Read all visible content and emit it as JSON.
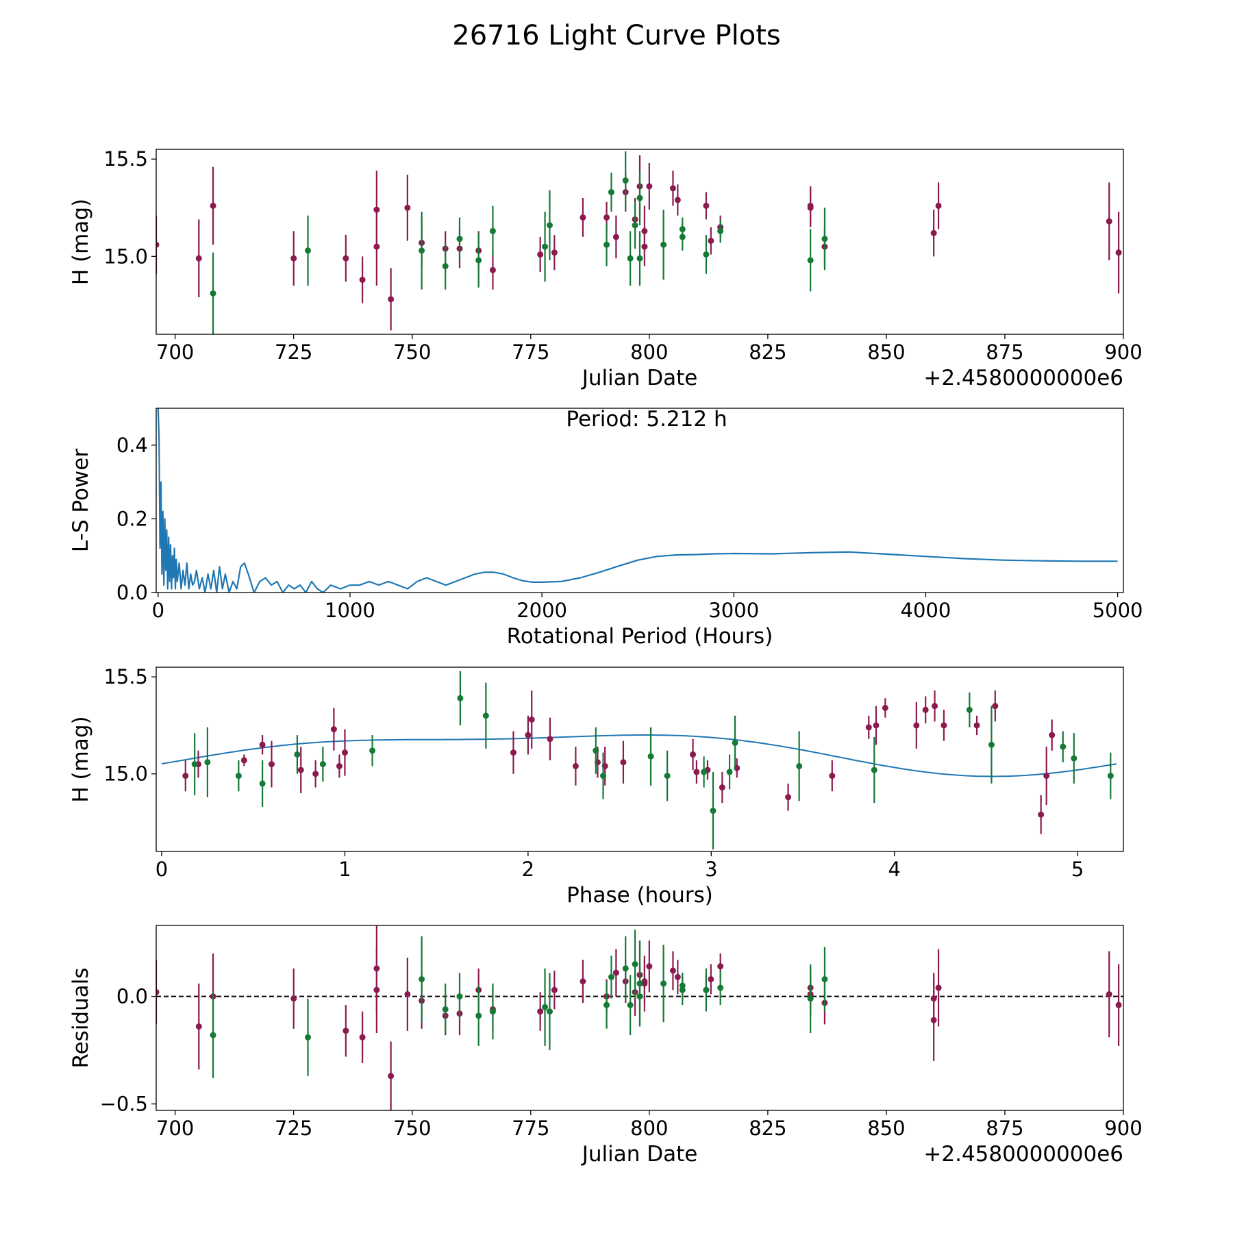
{
  "figure_title": "26716 Light Curve Plots",
  "colors": {
    "maroon": "#8b1a4f",
    "green": "#147a35",
    "fit": "#1f77b4",
    "axis": "#000000"
  },
  "chart_data": [
    {
      "type": "scatter",
      "id": "lightcurve",
      "xlabel": "Julian Date",
      "ylabel": "H (mag)",
      "offset_label": "+2.4580000000e6",
      "xlim": [
        696,
        900
      ],
      "ylim": [
        14.6,
        15.55
      ],
      "xticks": [
        700,
        725,
        750,
        775,
        800,
        825,
        850,
        875,
        900
      ],
      "xtick_labels": [
        "700",
        "725",
        "750",
        "775",
        "800",
        "825",
        "850",
        "875",
        "900"
      ],
      "yticks": [
        15.0,
        15.5
      ],
      "ytick_labels": [
        "15.0",
        "15.5"
      ],
      "errorbars": true,
      "series": [
        {
          "name": "maroon",
          "color": "#8b1a4f",
          "x": [
            696,
            705,
            708,
            725,
            736,
            739.5,
            742.5,
            742.5,
            745.5,
            749,
            752,
            757,
            760,
            764,
            767,
            777,
            780,
            786,
            791,
            793,
            795,
            797,
            798,
            799,
            799,
            800,
            805,
            806,
            812,
            813,
            815,
            834,
            834,
            837,
            860,
            861,
            897,
            899
          ],
          "y": [
            15.06,
            14.99,
            15.26,
            14.99,
            14.99,
            14.88,
            15.05,
            15.24,
            14.78,
            15.25,
            15.07,
            15.04,
            15.04,
            15.03,
            14.93,
            15.01,
            15.02,
            15.2,
            15.2,
            15.1,
            15.33,
            15.19,
            15.36,
            15.13,
            15.05,
            15.36,
            15.35,
            15.29,
            15.26,
            15.08,
            15.15,
            15.25,
            15.26,
            15.05,
            15.12,
            15.26,
            15.18,
            15.02
          ],
          "err": [
            0.15,
            0.2,
            0.2,
            0.14,
            0.12,
            0.12,
            0.2,
            0.2,
            0.16,
            0.17,
            0.13,
            0.09,
            0.1,
            0.1,
            0.1,
            0.09,
            0.09,
            0.1,
            0.08,
            0.11,
            0.1,
            0.11,
            0.16,
            0.13,
            0.1,
            0.12,
            0.09,
            0.08,
            0.07,
            0.07,
            0.06,
            0.1,
            0.1,
            0.1,
            0.12,
            0.12,
            0.2,
            0.21
          ],
          "text": ""
        },
        {
          "name": "green",
          "color": "#147a35",
          "x": [
            708,
            728,
            752,
            757,
            760,
            764,
            767,
            778,
            779,
            791,
            792,
            795,
            796,
            797,
            798,
            798,
            803,
            807,
            807,
            812,
            815,
            834,
            837
          ],
          "y": [
            14.81,
            15.03,
            15.03,
            14.95,
            15.09,
            14.98,
            15.13,
            15.05,
            15.16,
            15.06,
            15.33,
            15.39,
            14.99,
            15.16,
            14.99,
            15.3,
            15.06,
            15.14,
            15.1,
            15.01,
            15.13,
            14.98,
            15.09
          ],
          "err": [
            0.21,
            0.18,
            0.2,
            0.12,
            0.11,
            0.14,
            0.13,
            0.18,
            0.18,
            0.11,
            0.1,
            0.15,
            0.14,
            0.12,
            0.14,
            0.14,
            0.18,
            0.06,
            0.07,
            0.1,
            0.06,
            0.16,
            0.16
          ],
          "text": ""
        }
      ]
    },
    {
      "type": "line",
      "id": "periodogram",
      "xlabel": "Rotational Period (Hours)",
      "ylabel": "L-S Power",
      "annotation": "Period: 5.212 h",
      "xlim": [
        -10,
        5030
      ],
      "ylim": [
        0,
        0.5
      ],
      "xticks": [
        0,
        1000,
        2000,
        3000,
        4000,
        5000
      ],
      "xtick_labels": [
        "0",
        "1000",
        "2000",
        "3000",
        "4000",
        "5000"
      ],
      "yticks": [
        0.0,
        0.2,
        0.4
      ],
      "ytick_labels": [
        "0.0",
        "0.2",
        "0.4"
      ],
      "series": [
        {
          "name": "L-S Power",
          "color": "#1f77b4",
          "x": [
            0,
            5,
            10,
            15,
            20,
            25,
            30,
            35,
            40,
            45,
            50,
            55,
            60,
            65,
            70,
            75,
            80,
            85,
            90,
            95,
            100,
            110,
            120,
            130,
            140,
            150,
            160,
            170,
            180,
            190,
            200,
            215,
            230,
            245,
            260,
            275,
            290,
            305,
            320,
            335,
            350,
            370,
            390,
            410,
            430,
            450,
            470,
            500,
            530,
            560,
            590,
            620,
            650,
            680,
            710,
            740,
            770,
            800,
            830,
            860,
            900,
            950,
            1000,
            1050,
            1100,
            1150,
            1200,
            1250,
            1300,
            1350,
            1400,
            1450,
            1500,
            1550,
            1600,
            1650,
            1700,
            1750,
            1800,
            1850,
            1900,
            1950,
            2000,
            2100,
            2200,
            2300,
            2400,
            2500,
            2600,
            2700,
            2800,
            2900,
            3000,
            3200,
            3400,
            3600,
            3800,
            4000,
            4200,
            4400,
            4600,
            4800,
            5000
          ],
          "y": [
            0.5,
            0.42,
            0.12,
            0.3,
            0.05,
            0.22,
            0.02,
            0.2,
            0.06,
            0.17,
            0.01,
            0.15,
            0.03,
            0.13,
            0.01,
            0.1,
            0.04,
            0.12,
            0.01,
            0.09,
            0.03,
            0.08,
            0.01,
            0.06,
            0.02,
            0.08,
            0.01,
            0.05,
            0.02,
            0.03,
            0.06,
            0.01,
            0.04,
            0.0,
            0.05,
            0.01,
            0.06,
            0.0,
            0.07,
            0.01,
            0.05,
            0.0,
            0.03,
            0.01,
            0.07,
            0.08,
            0.05,
            0.0,
            0.03,
            0.04,
            0.02,
            0.03,
            0.0,
            0.02,
            0.01,
            0.02,
            0.0,
            0.03,
            0.01,
            0.0,
            0.02,
            0.01,
            0.02,
            0.02,
            0.03,
            0.02,
            0.03,
            0.02,
            0.01,
            0.03,
            0.04,
            0.03,
            0.02,
            0.03,
            0.04,
            0.05,
            0.055,
            0.055,
            0.05,
            0.04,
            0.032,
            0.028,
            0.028,
            0.03,
            0.04,
            0.055,
            0.072,
            0.088,
            0.098,
            0.102,
            0.103,
            0.105,
            0.106,
            0.105,
            0.108,
            0.11,
            0.104,
            0.098,
            0.092,
            0.088,
            0.086,
            0.085,
            0.085
          ],
          "text": ""
        }
      ]
    },
    {
      "type": "scatter",
      "id": "phased",
      "xlabel": "Phase (hours)",
      "ylabel": "H (mag)",
      "xlim": [
        -0.03,
        5.25
      ],
      "ylim": [
        14.6,
        15.55
      ],
      "xticks": [
        0,
        1,
        2,
        3,
        4,
        5
      ],
      "xtick_labels": [
        "0",
        "1",
        "2",
        "3",
        "4",
        "5"
      ],
      "yticks": [
        15.0,
        15.5
      ],
      "ytick_labels": [
        "15.0",
        "15.5"
      ],
      "errorbars": true,
      "fit": {
        "period": 5.212,
        "mean": 15.119,
        "amp1": 0.098,
        "phase1": -0.86,
        "amp2": 0.035,
        "phase2": 0.2,
        "color": "#1f77b4"
      },
      "series": [
        {
          "name": "maroon",
          "color": "#8b1a4f",
          "x": [
            0.13,
            0.2,
            0.45,
            0.55,
            0.6,
            0.76,
            0.84,
            0.94,
            0.97,
            1.0,
            1.92,
            2.0,
            2.02,
            2.12,
            2.26,
            2.38,
            2.42,
            2.52,
            2.9,
            2.92,
            2.98,
            3.06,
            3.14,
            3.42,
            3.66,
            3.86,
            3.9,
            3.95,
            4.12,
            4.17,
            4.22,
            4.27,
            4.45,
            4.55,
            4.8,
            4.83,
            4.86
          ],
          "y": [
            14.99,
            15.05,
            15.07,
            15.15,
            15.05,
            15.02,
            15.0,
            15.23,
            15.04,
            15.11,
            15.11,
            15.2,
            15.28,
            15.18,
            15.04,
            15.06,
            15.04,
            15.06,
            15.1,
            15.01,
            15.02,
            14.93,
            15.03,
            14.88,
            14.99,
            15.24,
            15.25,
            15.34,
            15.25,
            15.33,
            15.35,
            15.25,
            15.25,
            15.35,
            14.79,
            14.99,
            15.2
          ],
          "err": [
            0.08,
            0.07,
            0.03,
            0.05,
            0.12,
            0.12,
            0.07,
            0.11,
            0.06,
            0.12,
            0.11,
            0.1,
            0.15,
            0.11,
            0.1,
            0.08,
            0.1,
            0.11,
            0.08,
            0.06,
            0.05,
            0.08,
            0.05,
            0.07,
            0.08,
            0.06,
            0.1,
            0.05,
            0.12,
            0.07,
            0.08,
            0.08,
            0.05,
            0.08,
            0.1,
            0.15,
            0.08
          ],
          "text": ""
        },
        {
          "name": "green",
          "color": "#147a35",
          "x": [
            0.18,
            0.25,
            0.42,
            0.55,
            0.74,
            0.88,
            1.15,
            1.63,
            1.77,
            2.37,
            2.41,
            2.67,
            2.76,
            2.96,
            3.01,
            3.1,
            3.13,
            3.48,
            3.89,
            4.41,
            4.53,
            4.92,
            4.98,
            5.18
          ],
          "y": [
            15.05,
            15.06,
            14.99,
            14.95,
            15.1,
            15.05,
            15.12,
            15.39,
            15.3,
            15.12,
            14.99,
            15.09,
            14.99,
            15.01,
            14.81,
            15.01,
            15.16,
            15.04,
            15.02,
            15.33,
            15.15,
            15.14,
            15.08,
            14.99
          ],
          "err": [
            0.16,
            0.18,
            0.08,
            0.12,
            0.1,
            0.09,
            0.08,
            0.14,
            0.17,
            0.12,
            0.12,
            0.15,
            0.13,
            0.08,
            0.2,
            0.09,
            0.14,
            0.18,
            0.17,
            0.09,
            0.2,
            0.08,
            0.13,
            0.12
          ],
          "text": ""
        }
      ]
    },
    {
      "type": "scatter",
      "id": "residuals",
      "xlabel": "Julian Date",
      "ylabel": "Residuals",
      "offset_label": "+2.4580000000e6",
      "xlim": [
        696,
        900
      ],
      "ylim": [
        -0.53,
        0.33
      ],
      "xticks": [
        700,
        725,
        750,
        775,
        800,
        825,
        850,
        875,
        900
      ],
      "xtick_labels": [
        "700",
        "725",
        "750",
        "775",
        "800",
        "825",
        "850",
        "875",
        "900"
      ],
      "yticks": [
        -0.5,
        0.0
      ],
      "ytick_labels": [
        "−0.5",
        "0.0"
      ],
      "zero_line": 0,
      "errorbars": true,
      "series": [
        {
          "name": "maroon",
          "color": "#8b1a4f",
          "x": [
            696,
            705,
            708,
            725,
            736,
            739.5,
            742.5,
            742.5,
            745.5,
            749,
            752,
            757,
            760,
            764,
            767,
            777,
            780,
            786,
            791,
            793,
            795,
            797,
            798,
            799,
            799,
            800,
            805,
            806,
            812,
            813,
            815,
            834,
            834,
            837,
            860,
            860,
            861,
            897,
            899
          ],
          "y": [
            0.02,
            -0.14,
            0.0,
            -0.01,
            -0.16,
            -0.19,
            0.13,
            0.03,
            -0.37,
            0.01,
            -0.02,
            -0.09,
            -0.08,
            0.03,
            -0.06,
            -0.07,
            0.03,
            0.07,
            0.0,
            0.11,
            0.07,
            0.02,
            0.1,
            0.06,
            0.07,
            0.14,
            0.12,
            0.09,
            0.03,
            0.08,
            0.14,
            0.04,
            0.01,
            -0.03,
            -0.01,
            -0.11,
            0.04,
            0.01,
            -0.04
          ],
          "err": [
            0.15,
            0.2,
            0.2,
            0.14,
            0.12,
            0.12,
            0.2,
            0.2,
            0.16,
            0.17,
            0.13,
            0.09,
            0.1,
            0.1,
            0.1,
            0.09,
            0.09,
            0.1,
            0.08,
            0.11,
            0.1,
            0.11,
            0.16,
            0.13,
            0.1,
            0.12,
            0.09,
            0.08,
            0.07,
            0.07,
            0.06,
            0.1,
            0.1,
            0.1,
            0.12,
            0.19,
            0.18,
            0.2,
            0.19
          ],
          "text": ""
        },
        {
          "name": "green",
          "color": "#147a35",
          "x": [
            708,
            728,
            752,
            757,
            760,
            764,
            767,
            778,
            779,
            791,
            792,
            795,
            796,
            797,
            798,
            798,
            803,
            807,
            807,
            812,
            815,
            834,
            837
          ],
          "y": [
            -0.18,
            -0.19,
            0.08,
            -0.06,
            0.0,
            -0.09,
            -0.07,
            -0.05,
            -0.07,
            -0.04,
            0.09,
            0.13,
            -0.04,
            0.15,
            0.0,
            0.06,
            0.06,
            0.05,
            0.03,
            0.03,
            0.04,
            -0.01,
            0.08
          ],
          "err": [
            0.2,
            0.18,
            0.2,
            0.12,
            0.11,
            0.14,
            0.13,
            0.18,
            0.18,
            0.11,
            0.1,
            0.15,
            0.14,
            0.16,
            0.14,
            0.2,
            0.18,
            0.06,
            0.07,
            0.1,
            0.08,
            0.16,
            0.15
          ],
          "text": ""
        }
      ]
    }
  ]
}
